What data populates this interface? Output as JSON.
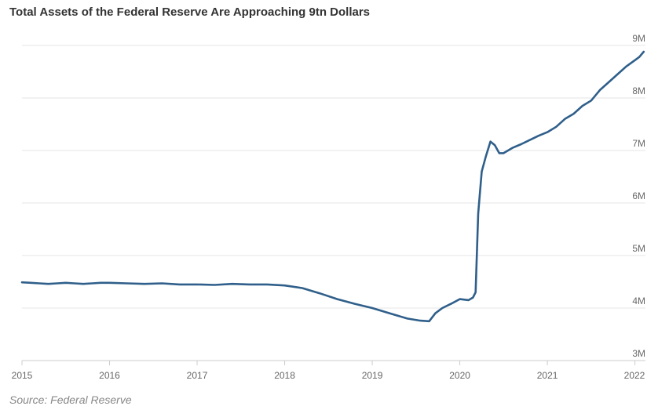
{
  "title": "Total Assets of the Federal Reserve Are Approaching 9tn Dollars",
  "source": "Source: Federal Reserve",
  "colors": {
    "line": "#2f5f8a",
    "grid": "#e6e6e6",
    "text": "#666666"
  },
  "chart_data": {
    "type": "line",
    "title": "Total Assets of the Federal Reserve Are Approaching 9tn Dollars",
    "xlabel": "",
    "ylabel": "",
    "xlim": [
      2015.0,
      2022.12
    ],
    "ylim": [
      3,
      9
    ],
    "grid": true,
    "legend": "none",
    "y_ticks": [
      3,
      4,
      5,
      6,
      7,
      8,
      9
    ],
    "y_tick_labels": [
      "3M",
      "4M",
      "5M",
      "6M",
      "7M",
      "8M",
      "9M"
    ],
    "x_ticks": [
      2015,
      2016,
      2017,
      2018,
      2019,
      2020,
      2021,
      2022
    ],
    "x_tick_labels": [
      "2015",
      "2016",
      "2017",
      "2018",
      "2019",
      "2020",
      "2021",
      "2022"
    ],
    "series": [
      {
        "name": "",
        "x": [
          2015.0,
          2015.1,
          2015.2,
          2015.3,
          2015.4,
          2015.5,
          2015.6,
          2015.7,
          2015.8,
          2015.9,
          2016.0,
          2016.2,
          2016.4,
          2016.6,
          2016.8,
          2017.0,
          2017.2,
          2017.4,
          2017.6,
          2017.8,
          2018.0,
          2018.2,
          2018.4,
          2018.6,
          2018.8,
          2019.0,
          2019.2,
          2019.4,
          2019.55,
          2019.65,
          2019.72,
          2019.8,
          2019.9,
          2020.0,
          2020.1,
          2020.15,
          2020.18,
          2020.21,
          2020.25,
          2020.3,
          2020.35,
          2020.4,
          2020.45,
          2020.5,
          2020.6,
          2020.7,
          2020.8,
          2020.9,
          2021.0,
          2021.1,
          2021.2,
          2021.3,
          2021.4,
          2021.5,
          2021.6,
          2021.7,
          2021.8,
          2021.9,
          2022.0,
          2022.05,
          2022.1
        ],
        "y": [
          4.49,
          4.48,
          4.47,
          4.46,
          4.47,
          4.48,
          4.47,
          4.46,
          4.47,
          4.48,
          4.48,
          4.47,
          4.46,
          4.47,
          4.45,
          4.45,
          4.44,
          4.46,
          4.45,
          4.45,
          4.43,
          4.38,
          4.28,
          4.17,
          4.08,
          4.0,
          3.9,
          3.8,
          3.76,
          3.75,
          3.9,
          4.0,
          4.08,
          4.17,
          4.15,
          4.2,
          4.3,
          5.8,
          6.6,
          6.9,
          7.17,
          7.1,
          6.95,
          6.95,
          7.05,
          7.12,
          7.2,
          7.28,
          7.35,
          7.45,
          7.6,
          7.7,
          7.85,
          7.95,
          8.15,
          8.3,
          8.45,
          8.6,
          8.72,
          8.78,
          8.88
        ]
      }
    ]
  }
}
